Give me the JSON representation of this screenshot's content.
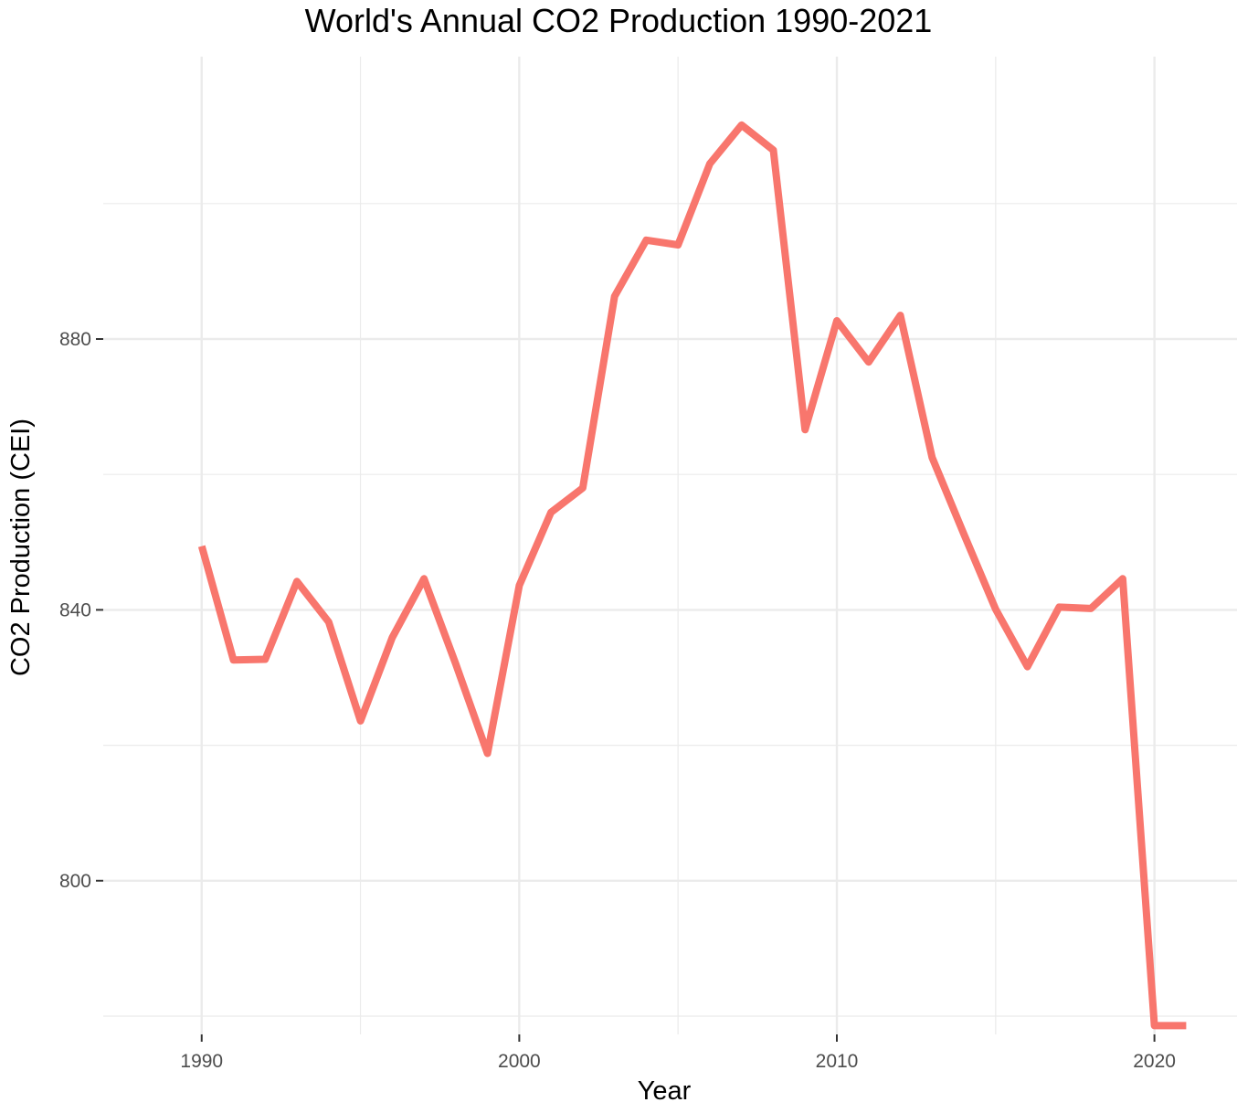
{
  "chart_data": {
    "type": "line",
    "title": "World's Annual CO2 Production 1990-2021",
    "xlabel": "Year",
    "ylabel": "CO2 Production (CEI)",
    "x_ticks": [
      1990,
      2000,
      2010,
      2020
    ],
    "y_ticks": [
      800,
      840,
      880
    ],
    "xlim": [
      1986.9,
      2022.6
    ],
    "ylim": [
      777.3,
      921.7
    ],
    "grid": true,
    "line_color": "#f8766d",
    "series": [
      {
        "x": [
          1990,
          1991,
          1992,
          1993,
          1994,
          1995,
          1996,
          1997,
          1998,
          1999,
          2000,
          2001,
          2002,
          2003,
          2004,
          2005,
          2006,
          2007,
          2008,
          2009,
          2010,
          2011,
          2012,
          2013,
          2014,
          2015,
          2016,
          2017,
          2018,
          2019,
          2020,
          2021
        ],
        "y": [
          849.4,
          832.6,
          832.7,
          844.2,
          838.2,
          823.6,
          835.9,
          844.6,
          832.0,
          818.8,
          843.6,
          854.4,
          858.0,
          886.3,
          894.6,
          893.9,
          905.9,
          911.6,
          907.9,
          866.6,
          882.7,
          876.6,
          883.5,
          862.5,
          851.2,
          840.1,
          831.6,
          840.4,
          840.2,
          844.6,
          778.6,
          778.6
        ]
      }
    ]
  }
}
